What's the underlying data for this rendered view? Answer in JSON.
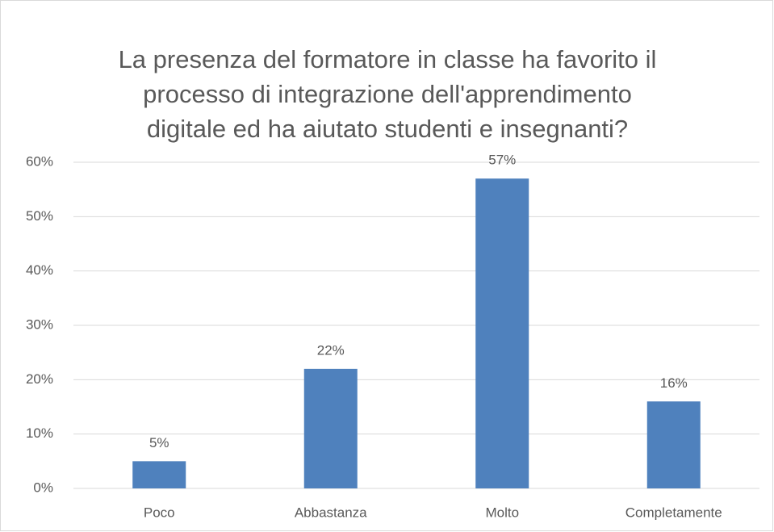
{
  "chart_data": {
    "type": "bar",
    "title": [
      "La presenza del formatore in classe ha favorito il",
      "processo di integrazione dell'apprendimento",
      "digitale ed ha aiutato studenti e insegnanti?"
    ],
    "categories": [
      "Poco",
      "Abbastanza",
      "Molto",
      "Completamente"
    ],
    "values": [
      5,
      22,
      57,
      16
    ],
    "value_labels": [
      "5%",
      "22%",
      "57%",
      "16%"
    ],
    "color": "#4f81bd",
    "ylim": [
      0,
      60
    ],
    "yticks": [
      {
        "value": 0,
        "label": "0%"
      },
      {
        "value": 10,
        "label": "10%"
      },
      {
        "value": 20,
        "label": "20%"
      },
      {
        "value": 30,
        "label": "30%"
      },
      {
        "value": 40,
        "label": "40%"
      },
      {
        "value": 50,
        "label": "50%"
      },
      {
        "value": 60,
        "label": "60%"
      }
    ],
    "grid": true
  }
}
